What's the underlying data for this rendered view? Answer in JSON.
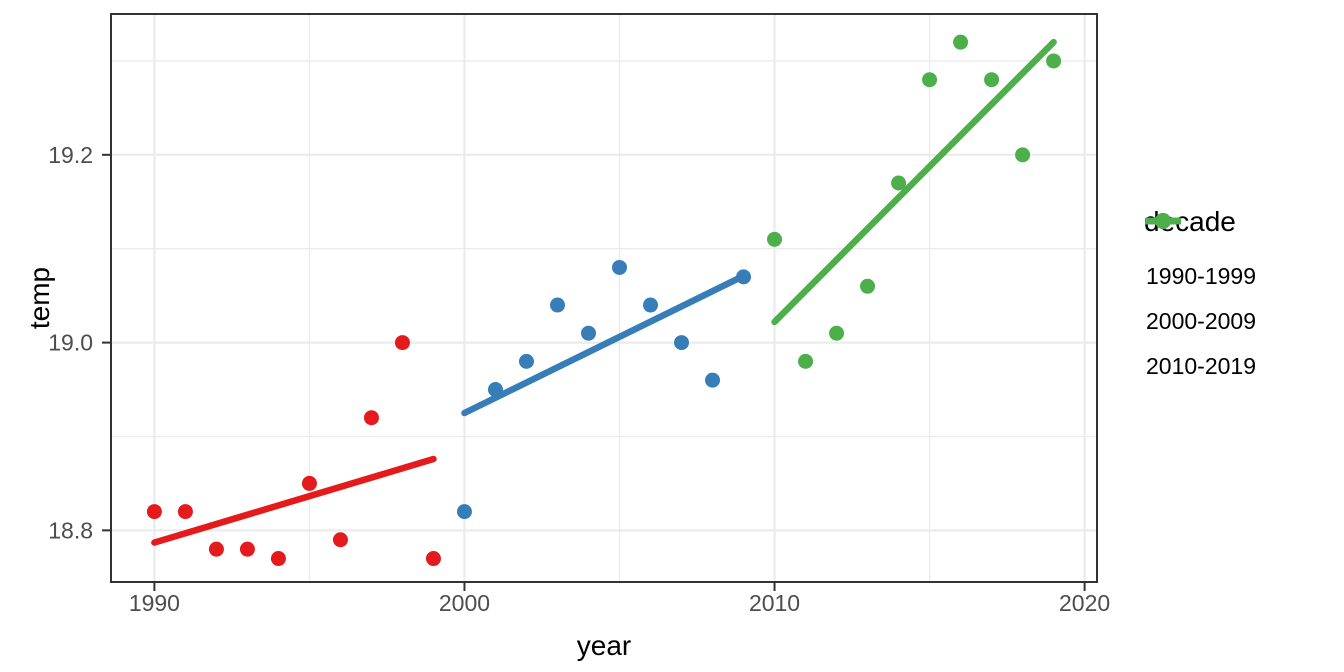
{
  "chart_data": {
    "type": "scatter",
    "title": "",
    "xlabel": "year",
    "ylabel": "temp",
    "legend_title": "decade",
    "legend_position": "right",
    "grid": true,
    "x_domain": [
      1988.6,
      2020.4
    ],
    "y_domain": [
      18.745,
      19.35
    ],
    "x_ticks": {
      "values": [
        1990,
        2000,
        2010,
        2020
      ],
      "labels": [
        "1990",
        "2000",
        "2010",
        "2020"
      ]
    },
    "y_ticks": {
      "values": [
        18.8,
        19.0,
        19.2
      ],
      "labels": [
        "18.8",
        "19.0",
        "19.2"
      ]
    },
    "x_minor": [
      1995,
      2005,
      2015
    ],
    "y_minor": [
      18.9,
      19.1,
      19.3
    ],
    "series": [
      {
        "name": "1990-1999",
        "color": "#e41a1c",
        "x": [
          1990,
          1991,
          1992,
          1993,
          1994,
          1995,
          1996,
          1997,
          1998,
          1999
        ],
        "y": [
          18.82,
          18.82,
          18.78,
          18.78,
          18.77,
          18.85,
          18.79,
          18.92,
          19.0,
          18.77
        ],
        "trend": {
          "x1": 1990,
          "y1": 18.787,
          "x2": 1999,
          "y2": 18.876
        }
      },
      {
        "name": "2000-2009",
        "color": "#377eb8",
        "x": [
          2000,
          2001,
          2002,
          2003,
          2004,
          2005,
          2006,
          2007,
          2008,
          2009
        ],
        "y": [
          18.82,
          18.95,
          18.98,
          19.04,
          19.01,
          19.08,
          19.04,
          19.0,
          18.96,
          19.07
        ],
        "trend": {
          "x1": 2000,
          "y1": 18.925,
          "x2": 2009,
          "y2": 19.071
        }
      },
      {
        "name": "2010-2019",
        "color": "#4daf4a",
        "x": [
          2010,
          2011,
          2012,
          2013,
          2014,
          2015,
          2016,
          2017,
          2018,
          2019
        ],
        "y": [
          19.11,
          18.98,
          19.01,
          19.06,
          19.17,
          19.28,
          19.32,
          19.28,
          19.2,
          19.3
        ],
        "trend": {
          "x1": 2010,
          "y1": 19.022,
          "x2": 2019,
          "y2": 19.32
        }
      }
    ],
    "style": {
      "background": "#ffffff",
      "grid_color": "#ebebeb",
      "panel_border_color": "#333333",
      "tick_color": "#333333",
      "tick_label_color": "#4d4d4d",
      "axis_title_color": "#000000"
    }
  }
}
